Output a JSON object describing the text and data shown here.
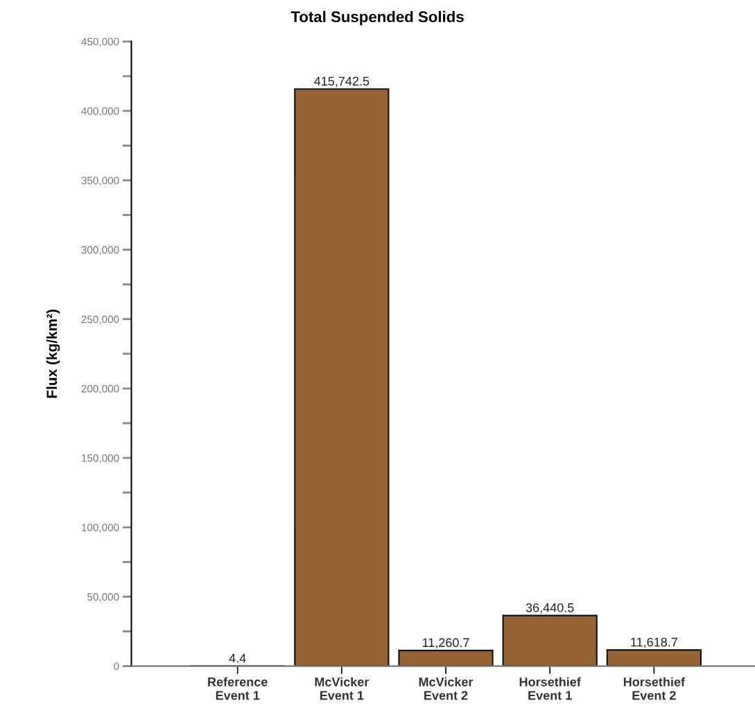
{
  "chart_data": {
    "type": "bar",
    "title": "Total Suspended Solids",
    "ylabel": "Flux (kg/km²)",
    "categories": [
      "Reference\nEvent 1",
      "McVicker\nEvent 1",
      "McVicker\nEvent 2",
      "Horsethief\nEvent 1",
      "Horsethief\nEvent 2"
    ],
    "values": [
      4.4,
      415742.5,
      11260.7,
      36440.5,
      11618.7
    ],
    "value_labels": [
      "4.4",
      "415,742.5",
      "11,260.7",
      "36,440.5",
      "11,618.7"
    ],
    "color": "#956334",
    "ylim": [
      0,
      450000
    ],
    "yticks": [
      {
        "value": 0,
        "label": "0"
      },
      {
        "value": 25000,
        "label": null
      },
      {
        "value": 50000,
        "label": "50,000"
      },
      {
        "value": 75000,
        "label": null
      },
      {
        "value": 100000,
        "label": "100,000"
      },
      {
        "value": 125000,
        "label": null
      },
      {
        "value": 150000,
        "label": "150,000"
      },
      {
        "value": 175000,
        "label": null
      },
      {
        "value": 200000,
        "label": "200,000"
      },
      {
        "value": 225000,
        "label": null
      },
      {
        "value": 250000,
        "label": "250,000"
      },
      {
        "value": 275000,
        "label": null
      },
      {
        "value": 300000,
        "label": "300,000"
      },
      {
        "value": 325000,
        "label": null
      },
      {
        "value": 350000,
        "label": "350,000"
      },
      {
        "value": 375000,
        "label": null
      },
      {
        "value": 400000,
        "label": "400,000"
      },
      {
        "value": 425000,
        "label": null
      },
      {
        "value": 450000,
        "label": "450,000"
      }
    ],
    "grid": false,
    "legend": false
  }
}
